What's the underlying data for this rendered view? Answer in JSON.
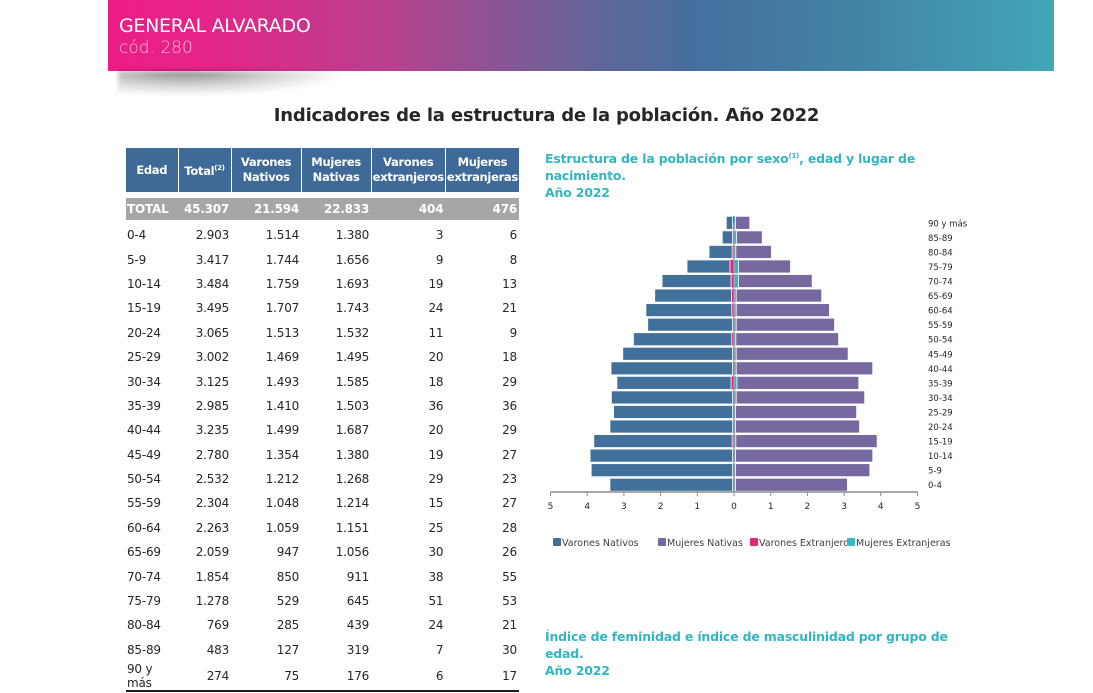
{
  "header": {
    "municipality": "GENERAL ALVARADO",
    "code": "cód. 280",
    "gradient_colors": [
      "#EE1C86",
      "#446E9E",
      "#41A6B8"
    ]
  },
  "page_title": "Indicadores de la estructura de la población. Año 2022",
  "table": {
    "headers": {
      "edad": "Edad",
      "total": "Total",
      "total_note": "(2)",
      "varones_nativos_1": "Varones",
      "varones_nativos_2": "Nativos",
      "mujeres_nativas_1": "Mujeres",
      "mujeres_nativas_2": "Nativas",
      "varones_extranjeros_1": "Varones",
      "varones_extranjeros_2": "extranjeros",
      "mujeres_extranjeras_1": "Mujeres",
      "mujeres_extranjeras_2": "extranjeras"
    },
    "total_row": [
      "TOTAL",
      "45.307",
      "21.594",
      "22.833",
      "404",
      "476"
    ],
    "rows": [
      [
        "0-4",
        "2.903",
        "1.514",
        "1.380",
        "3",
        "6"
      ],
      [
        "5-9",
        "3.417",
        "1.744",
        "1.656",
        "9",
        "8"
      ],
      [
        "10-14",
        "3.484",
        "1.759",
        "1.693",
        "19",
        "13"
      ],
      [
        "15-19",
        "3.495",
        "1.707",
        "1.743",
        "24",
        "21"
      ],
      [
        "20-24",
        "3.065",
        "1.513",
        "1.532",
        "11",
        "9"
      ],
      [
        "25-29",
        "3.002",
        "1.469",
        "1.495",
        "20",
        "18"
      ],
      [
        "30-34",
        "3.125",
        "1.493",
        "1.585",
        "18",
        "29"
      ],
      [
        "35-39",
        "2.985",
        "1.410",
        "1.503",
        "36",
        "36"
      ],
      [
        "40-44",
        "3.235",
        "1.499",
        "1.687",
        "20",
        "29"
      ],
      [
        "45-49",
        "2.780",
        "1.354",
        "1.380",
        "19",
        "27"
      ],
      [
        "50-54",
        "2.532",
        "1.212",
        "1.268",
        "29",
        "23"
      ],
      [
        "55-59",
        "2.304",
        "1.048",
        "1.214",
        "15",
        "27"
      ],
      [
        "60-64",
        "2.263",
        "1.059",
        "1.151",
        "25",
        "28"
      ],
      [
        "65-69",
        "2.059",
        "947",
        "1.056",
        "30",
        "26"
      ],
      [
        "70-74",
        "1.854",
        "850",
        "911",
        "38",
        "55"
      ],
      [
        "75-79",
        "1.278",
        "529",
        "645",
        "51",
        "53"
      ],
      [
        "80-84",
        "769",
        "285",
        "439",
        "24",
        "21"
      ],
      [
        "85-89",
        "483",
        "127",
        "319",
        "7",
        "30"
      ],
      [
        "90 y más",
        "274",
        "75",
        "176",
        "6",
        "17"
      ]
    ]
  },
  "chart_title": {
    "text_before_sup": "Estructura de la población por sexo",
    "sup": "(1)",
    "text_after_sup": ", edad y lugar de nacimiento.",
    "line2": "Año 2022"
  },
  "chart2_title": {
    "line1": "Índice de feminidad e índice de masculinidad por grupo de edad.",
    "line2": "Año 2022"
  },
  "chart_data": {
    "type": "bar",
    "subtype": "population-pyramid",
    "title": "Estructura de la población por sexo(1), edad y lugar de nacimiento. Año 2022",
    "xlabel": "",
    "ylabel": "",
    "units": "% of total population",
    "xlim": [
      -5,
      5
    ],
    "xticks": [
      5,
      4,
      3,
      2,
      1,
      0,
      1,
      2,
      3,
      4,
      5
    ],
    "grid": false,
    "legend_position": "bottom",
    "categories": [
      "0-4",
      "5-9",
      "10-14",
      "15-19",
      "20-24",
      "25-29",
      "30-34",
      "35-39",
      "40-44",
      "45-49",
      "50-54",
      "55-59",
      "60-64",
      "65-69",
      "70-74",
      "75-79",
      "80-84",
      "85-89",
      "90 y más"
    ],
    "series": [
      {
        "name": "Varones Nativos",
        "side": "left",
        "color": "#41709A",
        "values": [
          3.34,
          3.85,
          3.88,
          3.77,
          3.34,
          3.24,
          3.3,
          3.11,
          3.31,
          2.99,
          2.68,
          2.31,
          2.34,
          2.09,
          1.88,
          1.17,
          0.63,
          0.28,
          0.17
        ]
      },
      {
        "name": "Mujeres Nativas",
        "side": "right",
        "color": "#7768A0",
        "values": [
          3.05,
          3.66,
          3.74,
          3.85,
          3.38,
          3.3,
          3.5,
          3.32,
          3.72,
          3.05,
          2.8,
          2.68,
          2.54,
          2.33,
          2.01,
          1.42,
          0.97,
          0.7,
          0.39
        ]
      },
      {
        "name": "Varones Extranjeros",
        "side": "left",
        "color": "#E8257A",
        "values": [
          0.01,
          0.02,
          0.04,
          0.05,
          0.02,
          0.04,
          0.04,
          0.08,
          0.04,
          0.04,
          0.06,
          0.03,
          0.06,
          0.07,
          0.08,
          0.11,
          0.05,
          0.02,
          0.01
        ]
      },
      {
        "name": "Mujeres Extranjeras",
        "side": "right",
        "color": "#33B8C4",
        "values": [
          0.01,
          0.02,
          0.03,
          0.05,
          0.02,
          0.04,
          0.06,
          0.08,
          0.06,
          0.06,
          0.05,
          0.06,
          0.06,
          0.06,
          0.12,
          0.12,
          0.05,
          0.07,
          0.04
        ]
      }
    ]
  }
}
